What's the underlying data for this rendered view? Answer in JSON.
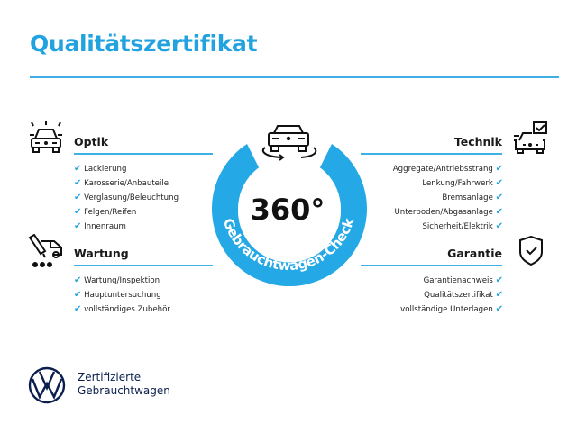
{
  "title": "Qualitätszertifikat",
  "center": {
    "big": "360°",
    "ring_text": "Gebrauchtwagen-Check"
  },
  "sections": {
    "optik": {
      "title": "Optik",
      "items": [
        "Lackierung",
        "Karosserie/Anbauteile",
        "Verglasung/Beleuchtung",
        "Felgen/Reifen",
        "Innenraum"
      ]
    },
    "wartung": {
      "title": "Wartung",
      "items": [
        "Wartung/Inspektion",
        "Hauptuntersuchung",
        "vollständiges Zubehör"
      ]
    },
    "technik": {
      "title": "Technik",
      "items": [
        "Aggregate/Antriebsstrang",
        "Lenkung/Fahrwerk",
        "Bremsanlage",
        "Unterboden/Abgasanlage",
        "Sicherheit/Elektrik"
      ]
    },
    "garantie": {
      "title": "Garantie",
      "items": [
        "Garantienachweis",
        "Qualitätszertifikat",
        "vollständige Unterlagen"
      ]
    }
  },
  "check_glyph": "✔",
  "brand": {
    "line1": "Zertifizierte",
    "line2": "Gebrauchtwagen"
  },
  "colors": {
    "accent": "#22a3e0",
    "brand_navy": "#0a1f4e"
  }
}
